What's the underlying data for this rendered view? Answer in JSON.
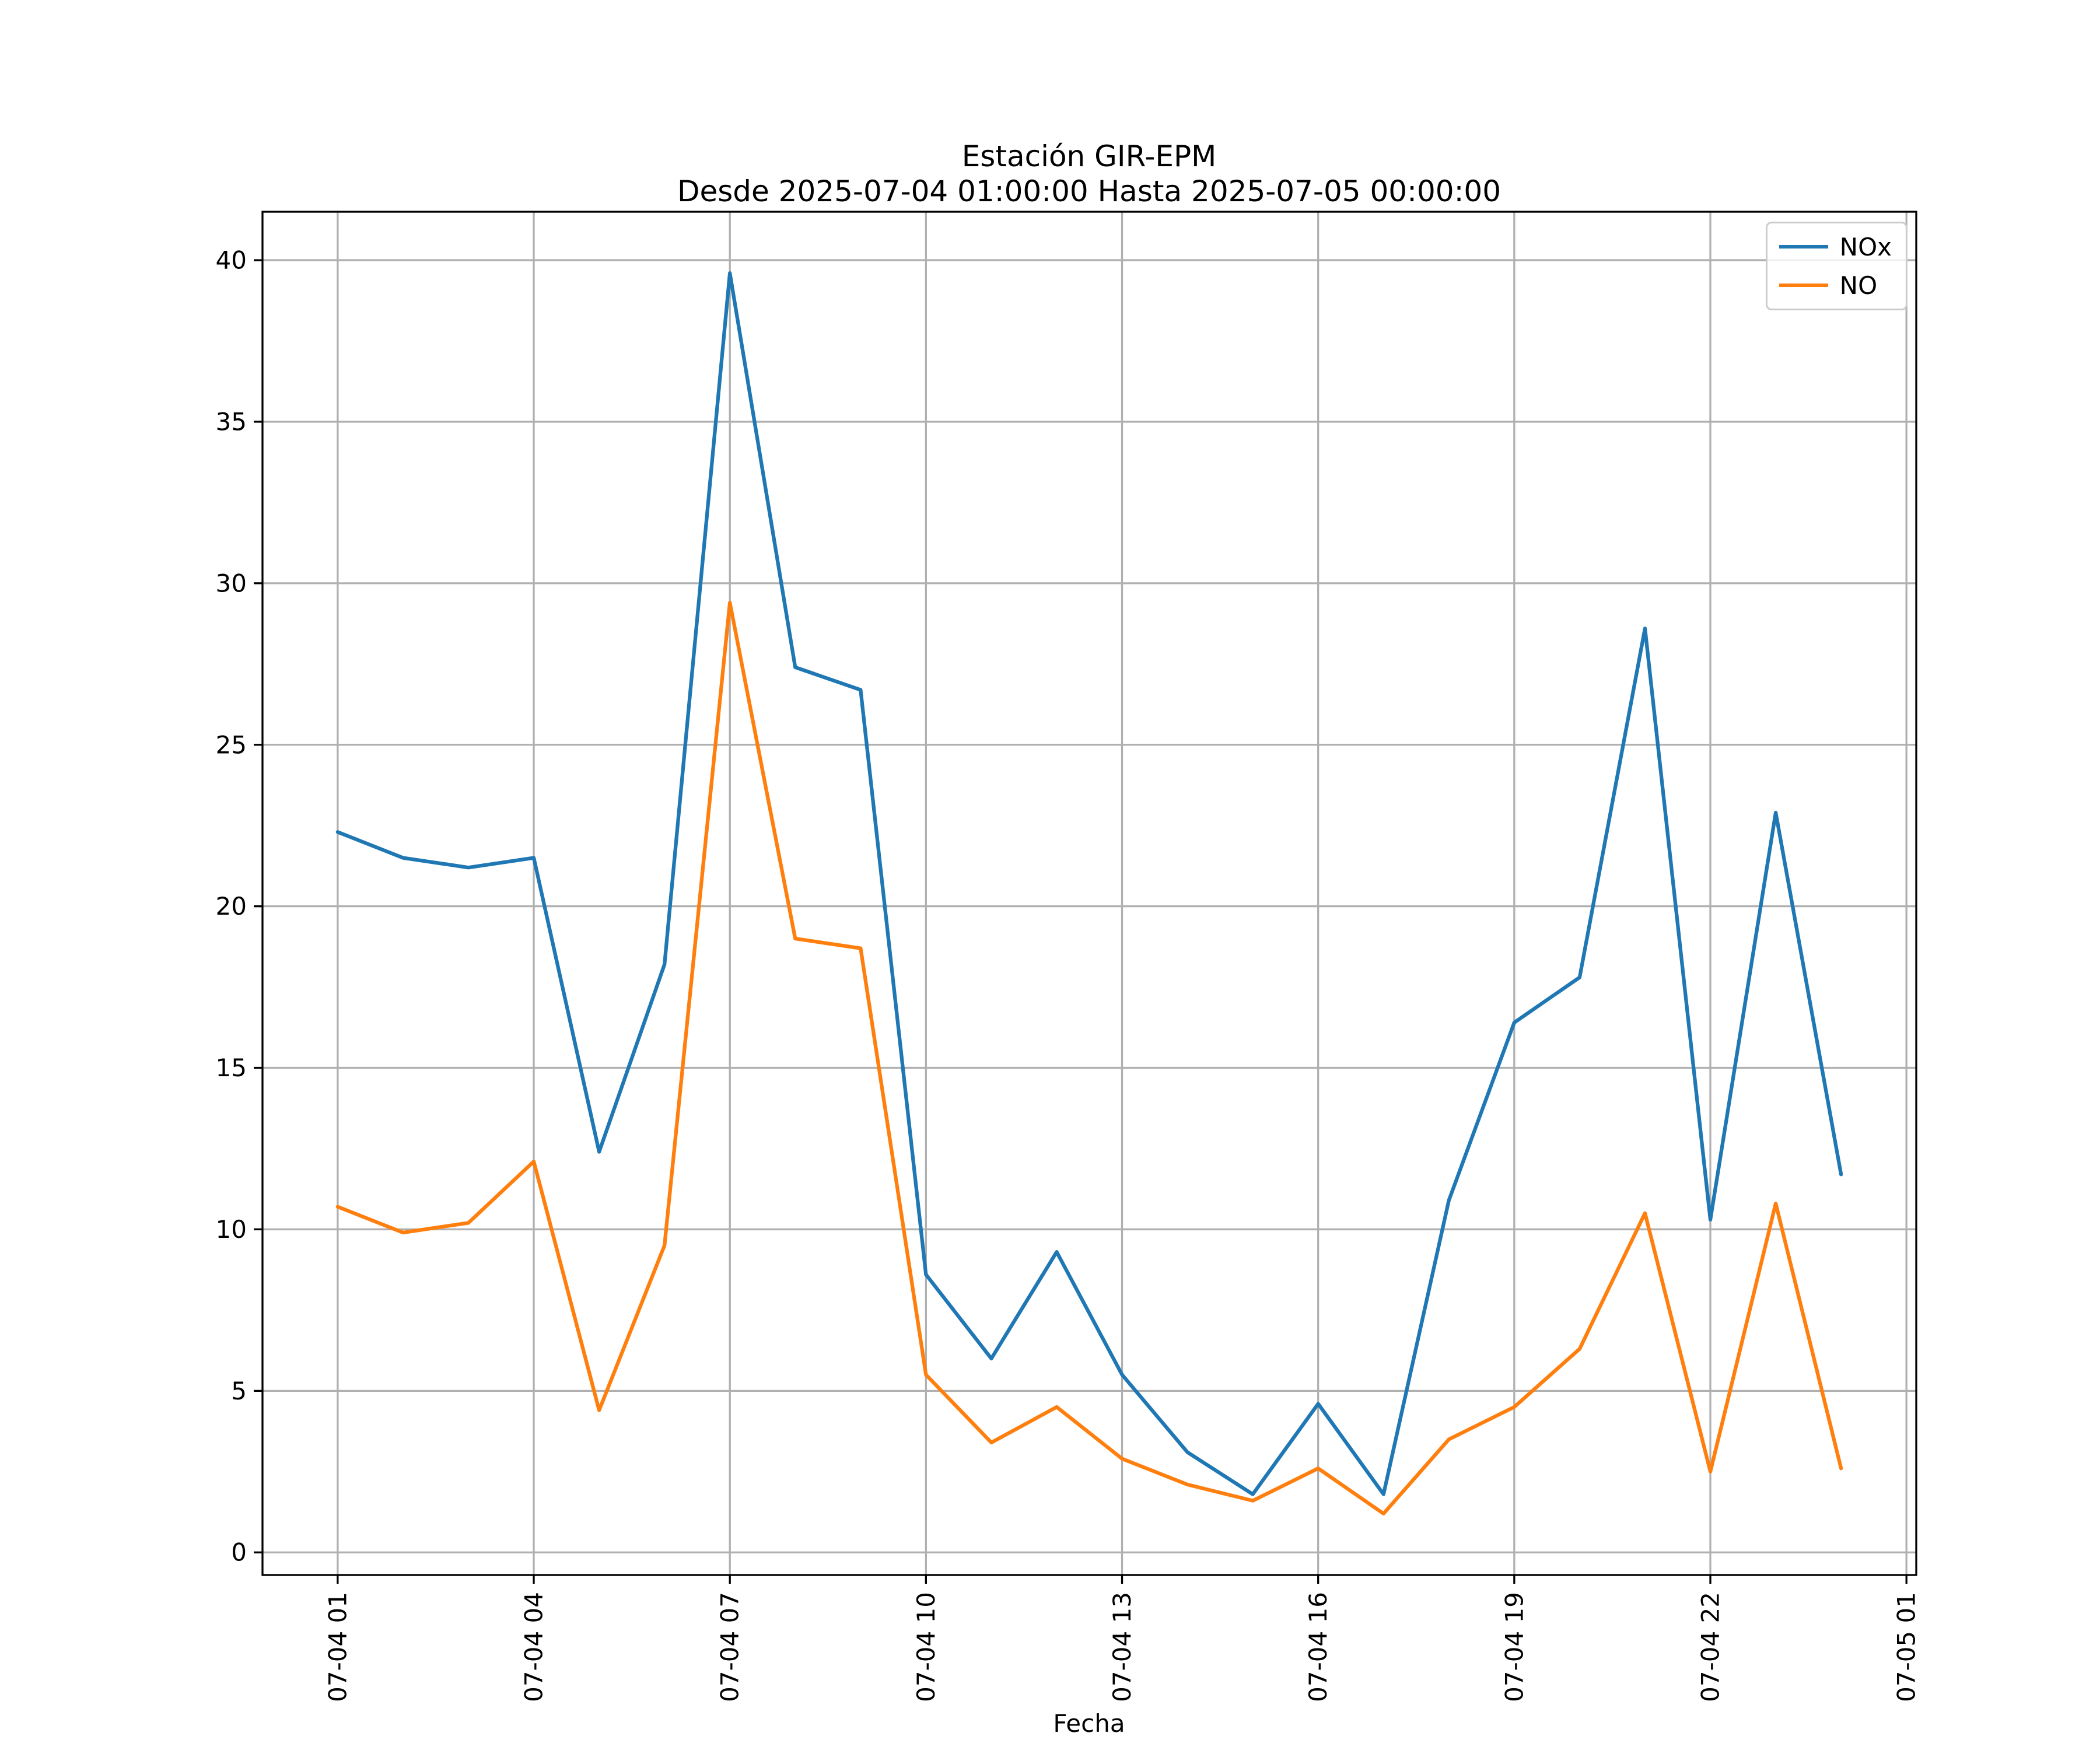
{
  "title": {
    "line1": "Estación GIR-EPM",
    "line2": "Desde 2025-07-04 01:00:00 Hasta 2025-07-05 00:00:00"
  },
  "xlabel": "Fecha",
  "colors": {
    "nox_line": "#1f77b4",
    "no_line": "#ff7f0e",
    "grid": "#b0b0b0",
    "spine": "#000000",
    "legend_border": "#cccccc"
  },
  "legend": {
    "entries": [
      {
        "label": "NOx",
        "color": "#1f77b4"
      },
      {
        "label": "NO",
        "color": "#ff7f0e"
      }
    ]
  },
  "chart_data": {
    "type": "line",
    "title": "Estación GIR-EPM\nDesde 2025-07-04 01:00:00 Hasta 2025-07-05 00:00:00",
    "xlabel": "Fecha",
    "ylabel": "",
    "grid": true,
    "legend_position": "upper right",
    "x_hours": [
      1,
      2,
      3,
      4,
      5,
      6,
      7,
      8,
      9,
      10,
      11,
      12,
      13,
      14,
      15,
      16,
      17,
      18,
      19,
      20,
      21,
      22,
      23,
      24
    ],
    "series": [
      {
        "name": "NOx",
        "color": "#1f77b4",
        "values": [
          22.3,
          21.5,
          21.2,
          21.5,
          12.4,
          18.2,
          39.6,
          27.4,
          26.7,
          8.6,
          6.0,
          9.3,
          5.5,
          3.1,
          1.8,
          4.6,
          1.8,
          10.9,
          16.4,
          17.8,
          28.6,
          10.3,
          22.9,
          11.7
        ]
      },
      {
        "name": "NO",
        "color": "#ff7f0e",
        "values": [
          10.7,
          9.9,
          10.2,
          12.1,
          4.4,
          9.5,
          29.4,
          19.0,
          18.7,
          5.5,
          3.4,
          4.5,
          2.9,
          2.1,
          1.6,
          2.6,
          1.2,
          3.5,
          4.5,
          6.3,
          10.5,
          2.5,
          10.8,
          2.6
        ]
      }
    ],
    "x_ticks": [
      {
        "hour": 1,
        "label": "07-04 01"
      },
      {
        "hour": 4,
        "label": "07-04 04"
      },
      {
        "hour": 7,
        "label": "07-04 07"
      },
      {
        "hour": 10,
        "label": "07-04 10"
      },
      {
        "hour": 13,
        "label": "07-04 13"
      },
      {
        "hour": 16,
        "label": "07-04 16"
      },
      {
        "hour": 19,
        "label": "07-04 19"
      },
      {
        "hour": 22,
        "label": "07-04 22"
      },
      {
        "hour": 25,
        "label": "07-05 01"
      }
    ],
    "y_ticks": [
      0,
      5,
      10,
      15,
      20,
      25,
      30,
      35,
      40
    ],
    "xlim": [
      -0.15,
      25.15
    ],
    "ylim": [
      -0.7,
      41.5
    ]
  }
}
